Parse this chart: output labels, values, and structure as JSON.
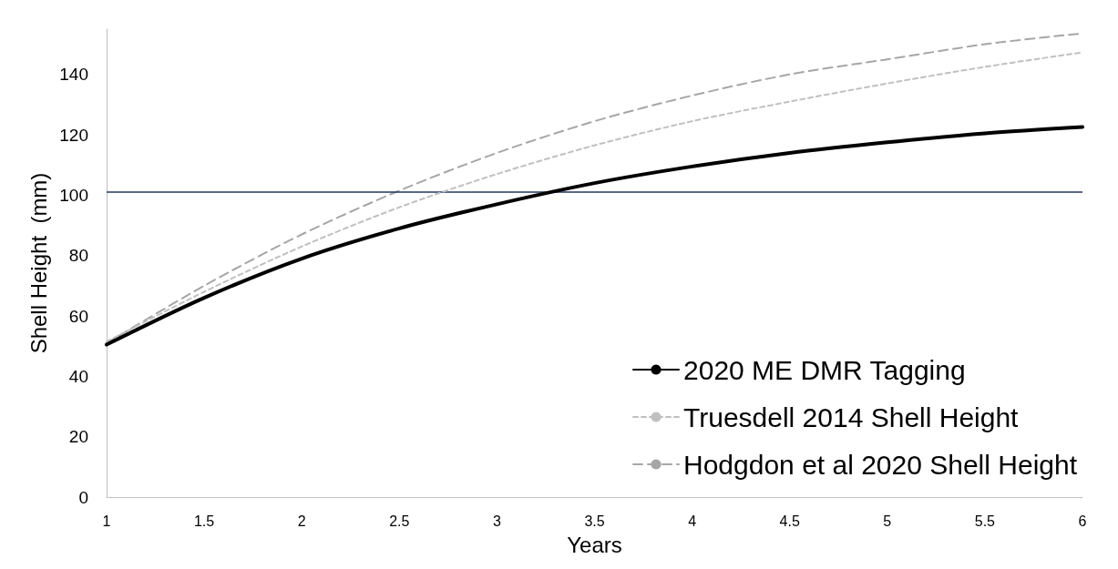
{
  "chart_data": {
    "type": "line",
    "xlabel": "Years",
    "ylabel": "Shell Height  (mm)",
    "x": [
      1,
      1.5,
      2,
      2.5,
      3,
      3.5,
      4,
      4.5,
      5,
      5.5,
      6
    ],
    "series": [
      {
        "name": "2020 ME DMR Tagging",
        "color": "#000000",
        "line_style": "solid",
        "values": [
          50.5,
          66,
          79,
          89,
          97,
          104,
          109.5,
          114,
          117.5,
          120.5,
          122.6
        ]
      },
      {
        "name": "Truesdell 2014 Shell Height",
        "color": "#c0c0c0",
        "line_style": "dotted",
        "values": [
          51.5,
          68,
          83,
          96,
          107,
          116.5,
          124.5,
          131,
          137,
          142.5,
          147.3
        ]
      },
      {
        "name": "Hodgdon et al 2020 Shell Height",
        "color": "#a6a6a6",
        "line_style": "dashed",
        "values": [
          51,
          70,
          87,
          101.5,
          114,
          124.5,
          133,
          140,
          145,
          150,
          153.6
        ]
      }
    ],
    "xlim": [
      1,
      6
    ],
    "xticks": [
      1,
      1.5,
      2,
      2.5,
      3,
      3.5,
      4,
      4.5,
      5,
      5.5,
      6
    ],
    "ylim": [
      0,
      155
    ],
    "yticks": [
      0,
      20,
      40,
      60,
      80,
      100,
      120,
      140
    ],
    "ref_lines": [
      {
        "axis": "y",
        "value": 101,
        "color": "#203864"
      }
    ],
    "grid": false,
    "legend": "bottom right",
    "marker": "none"
  }
}
